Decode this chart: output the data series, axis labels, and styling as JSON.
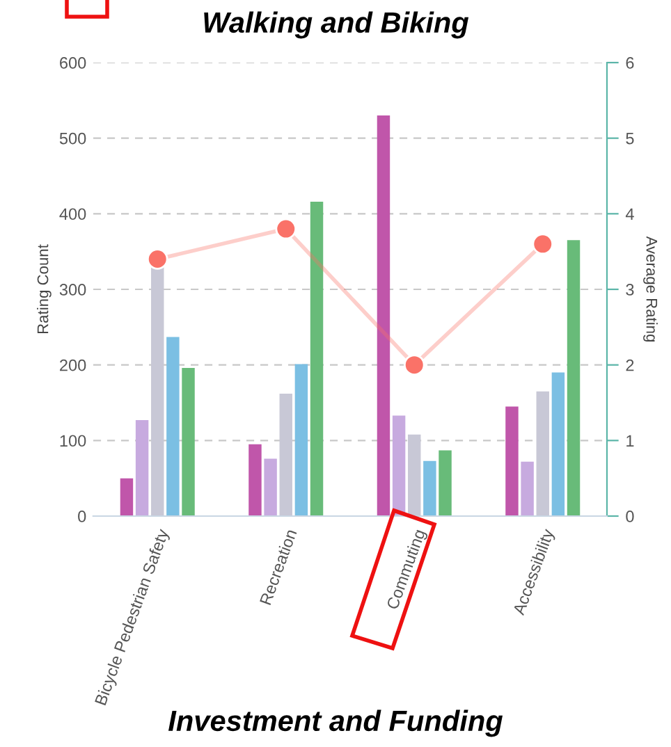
{
  "chart_data": {
    "type": "bar",
    "title": "Walking and Biking",
    "ylabel": "Rating Count",
    "y2label": "Average Rating",
    "categories": [
      "Bicycle Pedestrian Safety",
      "Recreation",
      "Commuting",
      "Accessibility"
    ],
    "series": [
      {
        "color": "#c056aa",
        "values": [
          50,
          95,
          530,
          145
        ]
      },
      {
        "color": "#c7aadf",
        "values": [
          127,
          76,
          133,
          72
        ]
      },
      {
        "color": "#c8c8d6",
        "values": [
          330,
          162,
          108,
          165
        ]
      },
      {
        "color": "#7bbfe3",
        "values": [
          237,
          201,
          73,
          190
        ]
      },
      {
        "color": "#68bb79",
        "values": [
          196,
          416,
          87,
          365
        ]
      },
      {
        "type": "line",
        "axis": "y2",
        "color": "#fa7268",
        "marker": "circle",
        "values": [
          3.4,
          3.8,
          2.0,
          3.6
        ]
      }
    ],
    "ylim": [
      0,
      600
    ],
    "yticks": [
      0,
      100,
      200,
      300,
      400,
      500,
      600
    ],
    "y2lim": [
      0,
      6
    ],
    "y2ticks": [
      0,
      1,
      2,
      3,
      4,
      5,
      6
    ],
    "grid": "y",
    "annotations": [
      "Investment and Funding"
    ]
  }
}
